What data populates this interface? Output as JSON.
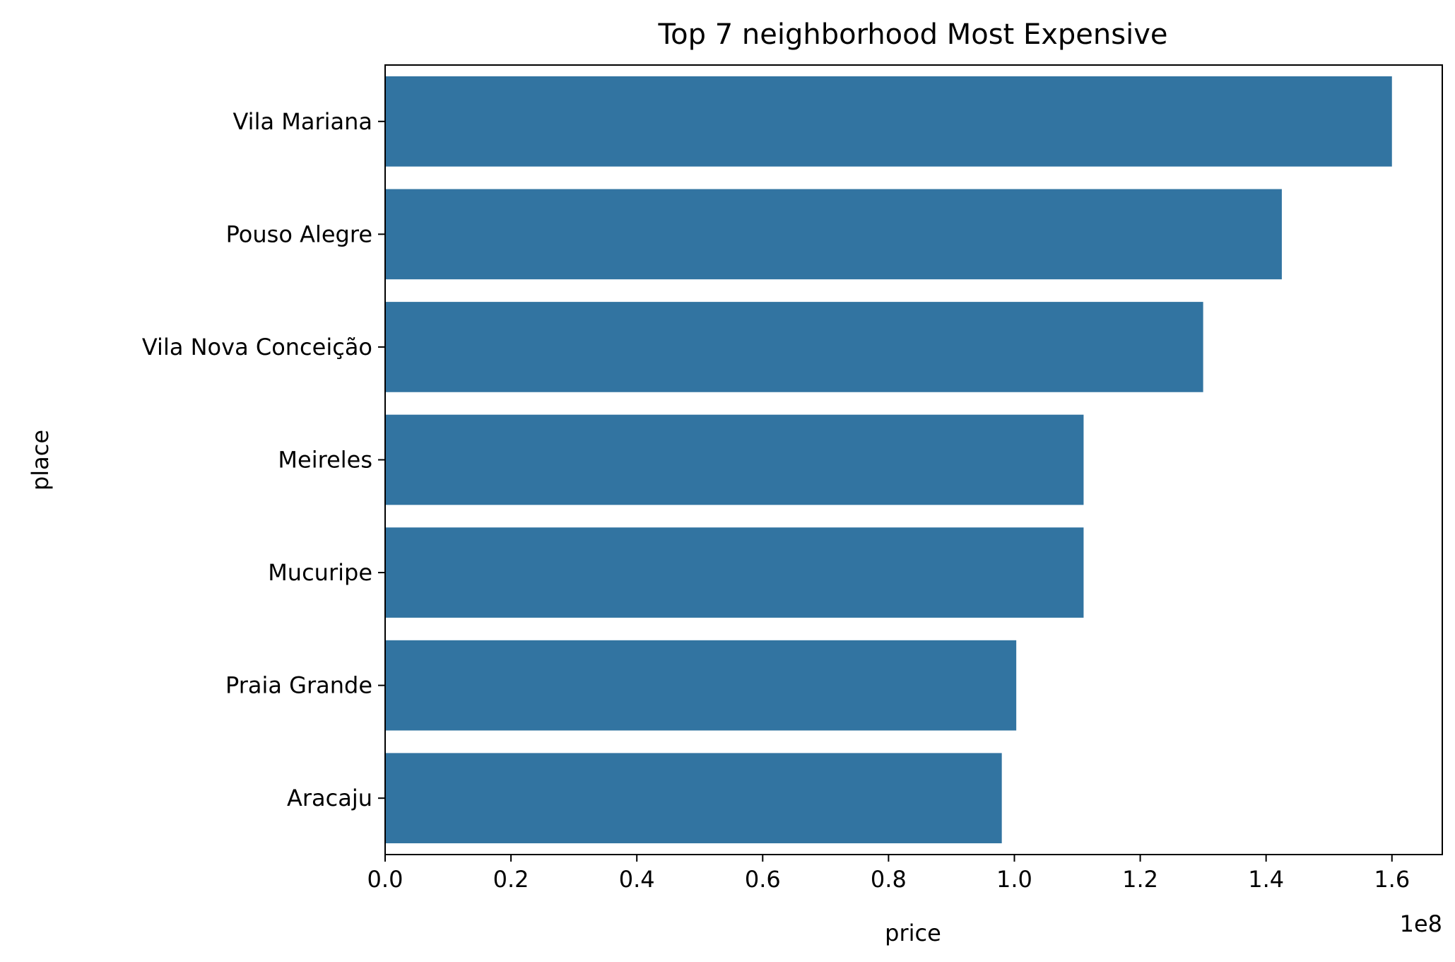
{
  "chart_data": {
    "type": "bar",
    "orientation": "horizontal",
    "title": "Top 7 neighborhood Most Expensive",
    "xlabel": "price",
    "ylabel": "place",
    "x_scale_label": "1e8",
    "categories": [
      "Vila Mariana",
      "Pouso Alegre",
      "Vila Nova Conceição",
      "Meireles",
      "Mucuripe",
      "Praia Grande",
      "Aracaju"
    ],
    "values": [
      160000000,
      142500000,
      130000000,
      111000000,
      111000000,
      100300000,
      98000000
    ],
    "xlim": [
      0,
      168000000
    ],
    "xticks": [
      0,
      20000000,
      40000000,
      60000000,
      80000000,
      100000000,
      120000000,
      140000000,
      160000000
    ],
    "xtick_labels": [
      "0.0",
      "0.2",
      "0.4",
      "0.6",
      "0.8",
      "1.0",
      "1.2",
      "1.4",
      "1.6"
    ],
    "grid": false,
    "legend": false,
    "bar_color": "#3274a1"
  }
}
